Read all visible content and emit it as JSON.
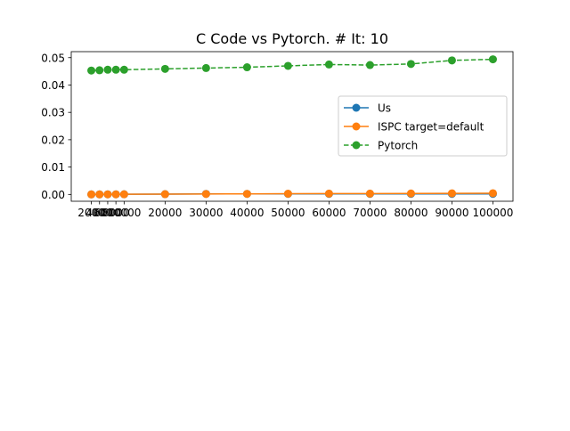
{
  "chart_data": {
    "type": "line",
    "title": "C Code vs Pytorch. # It: 10",
    "xlabel": "",
    "ylabel": "",
    "x": [
      2000,
      4000,
      6000,
      8000,
      10000,
      20000,
      30000,
      40000,
      50000,
      60000,
      70000,
      80000,
      90000,
      100000
    ],
    "xticks": [
      2000,
      4000,
      6000,
      8000,
      10000,
      20000,
      30000,
      40000,
      50000,
      60000,
      70000,
      80000,
      90000,
      100000
    ],
    "xtick_labels": [
      "2000",
      "4000",
      "6000",
      "8000",
      "10000",
      "20000",
      "30000",
      "40000",
      "50000",
      "60000",
      "70000",
      "80000",
      "90000",
      "100000"
    ],
    "yticks": [
      0.0,
      0.01,
      0.02,
      0.03,
      0.04,
      0.05
    ],
    "ytick_labels": [
      "0.00",
      "0.01",
      "0.02",
      "0.03",
      "0.04",
      "0.05"
    ],
    "xlim": [
      -2900,
      104900
    ],
    "ylim": [
      -0.0025,
      0.0522
    ],
    "grid": false,
    "legend_position": "center-right",
    "series": [
      {
        "name": "Us",
        "color": "#1f77b4",
        "linestyle": "solid",
        "marker": "circle",
        "values": [
          1e-05,
          2e-05,
          3e-05,
          4e-05,
          5e-05,
          0.0001,
          0.0002,
          0.0002,
          0.0002,
          0.0002,
          0.0002,
          0.0002,
          0.0002,
          0.0002
        ]
      },
      {
        "name": "ISPC target=default",
        "color": "#ff7f0e",
        "linestyle": "solid",
        "marker": "circle",
        "values": [
          1e-05,
          2e-05,
          3e-05,
          4e-05,
          5e-05,
          0.0001,
          0.00015,
          0.0002,
          0.00025,
          0.0003,
          0.0003,
          0.00035,
          0.0004,
          0.00045
        ]
      },
      {
        "name": "Pytorch",
        "color": "#2ca02c",
        "linestyle": "dashed",
        "marker": "circle",
        "values": [
          0.0453,
          0.0454,
          0.0456,
          0.0456,
          0.0456,
          0.0459,
          0.0462,
          0.0465,
          0.047,
          0.0475,
          0.0473,
          0.0477,
          0.049,
          0.0494
        ]
      }
    ]
  }
}
